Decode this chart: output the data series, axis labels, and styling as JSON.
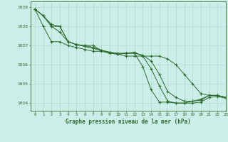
{
  "title": "Graphe pression niveau de la mer (hPa)",
  "bg_color": "#cceee8",
  "grid_color": "#aaddcc",
  "line_color": "#2d6b2d",
  "xlim": [
    -0.5,
    23
  ],
  "ylim": [
    1033.6,
    1039.3
  ],
  "yticks": [
    1034,
    1035,
    1036,
    1037,
    1038,
    1039
  ],
  "xticks": [
    0,
    1,
    2,
    3,
    4,
    5,
    6,
    7,
    8,
    9,
    10,
    11,
    12,
    13,
    14,
    15,
    16,
    17,
    18,
    19,
    20,
    21,
    22,
    23
  ],
  "series": [
    [
      1038.9,
      1038.55,
      1038.0,
      1038.0,
      1037.2,
      1037.05,
      1037.0,
      1037.0,
      1036.75,
      1036.65,
      1036.55,
      1036.45,
      1036.45,
      1036.45,
      1036.45,
      1036.45,
      1036.3,
      1036.0,
      1035.5,
      1035.0,
      1034.5,
      1034.4,
      1034.4,
      1034.3
    ],
    [
      1038.9,
      1038.55,
      1038.1,
      1038.0,
      1037.2,
      1037.05,
      1037.0,
      1036.9,
      1036.75,
      1036.65,
      1036.55,
      1036.6,
      1036.6,
      1036.5,
      1036.2,
      1035.5,
      1034.6,
      1034.3,
      1034.1,
      1034.1,
      1034.15,
      1034.4,
      1034.4,
      1034.3
    ],
    [
      1038.9,
      1038.55,
      1038.0,
      1037.7,
      1037.2,
      1037.05,
      1036.95,
      1036.85,
      1036.75,
      1036.65,
      1036.6,
      1036.6,
      1036.65,
      1036.45,
      1035.8,
      1034.9,
      1034.1,
      1034.0,
      1034.0,
      1034.0,
      1034.05,
      1034.3,
      1034.35,
      1034.25
    ],
    [
      1038.9,
      1038.0,
      1037.2,
      1037.2,
      1037.0,
      1036.9,
      1036.8,
      1036.7,
      1036.7,
      1036.6,
      1036.55,
      1036.6,
      1036.6,
      1035.9,
      1034.7,
      1034.05,
      1034.05,
      1034.0,
      1034.0,
      1034.1,
      1034.2,
      1034.4,
      1034.4,
      1034.3
    ]
  ]
}
